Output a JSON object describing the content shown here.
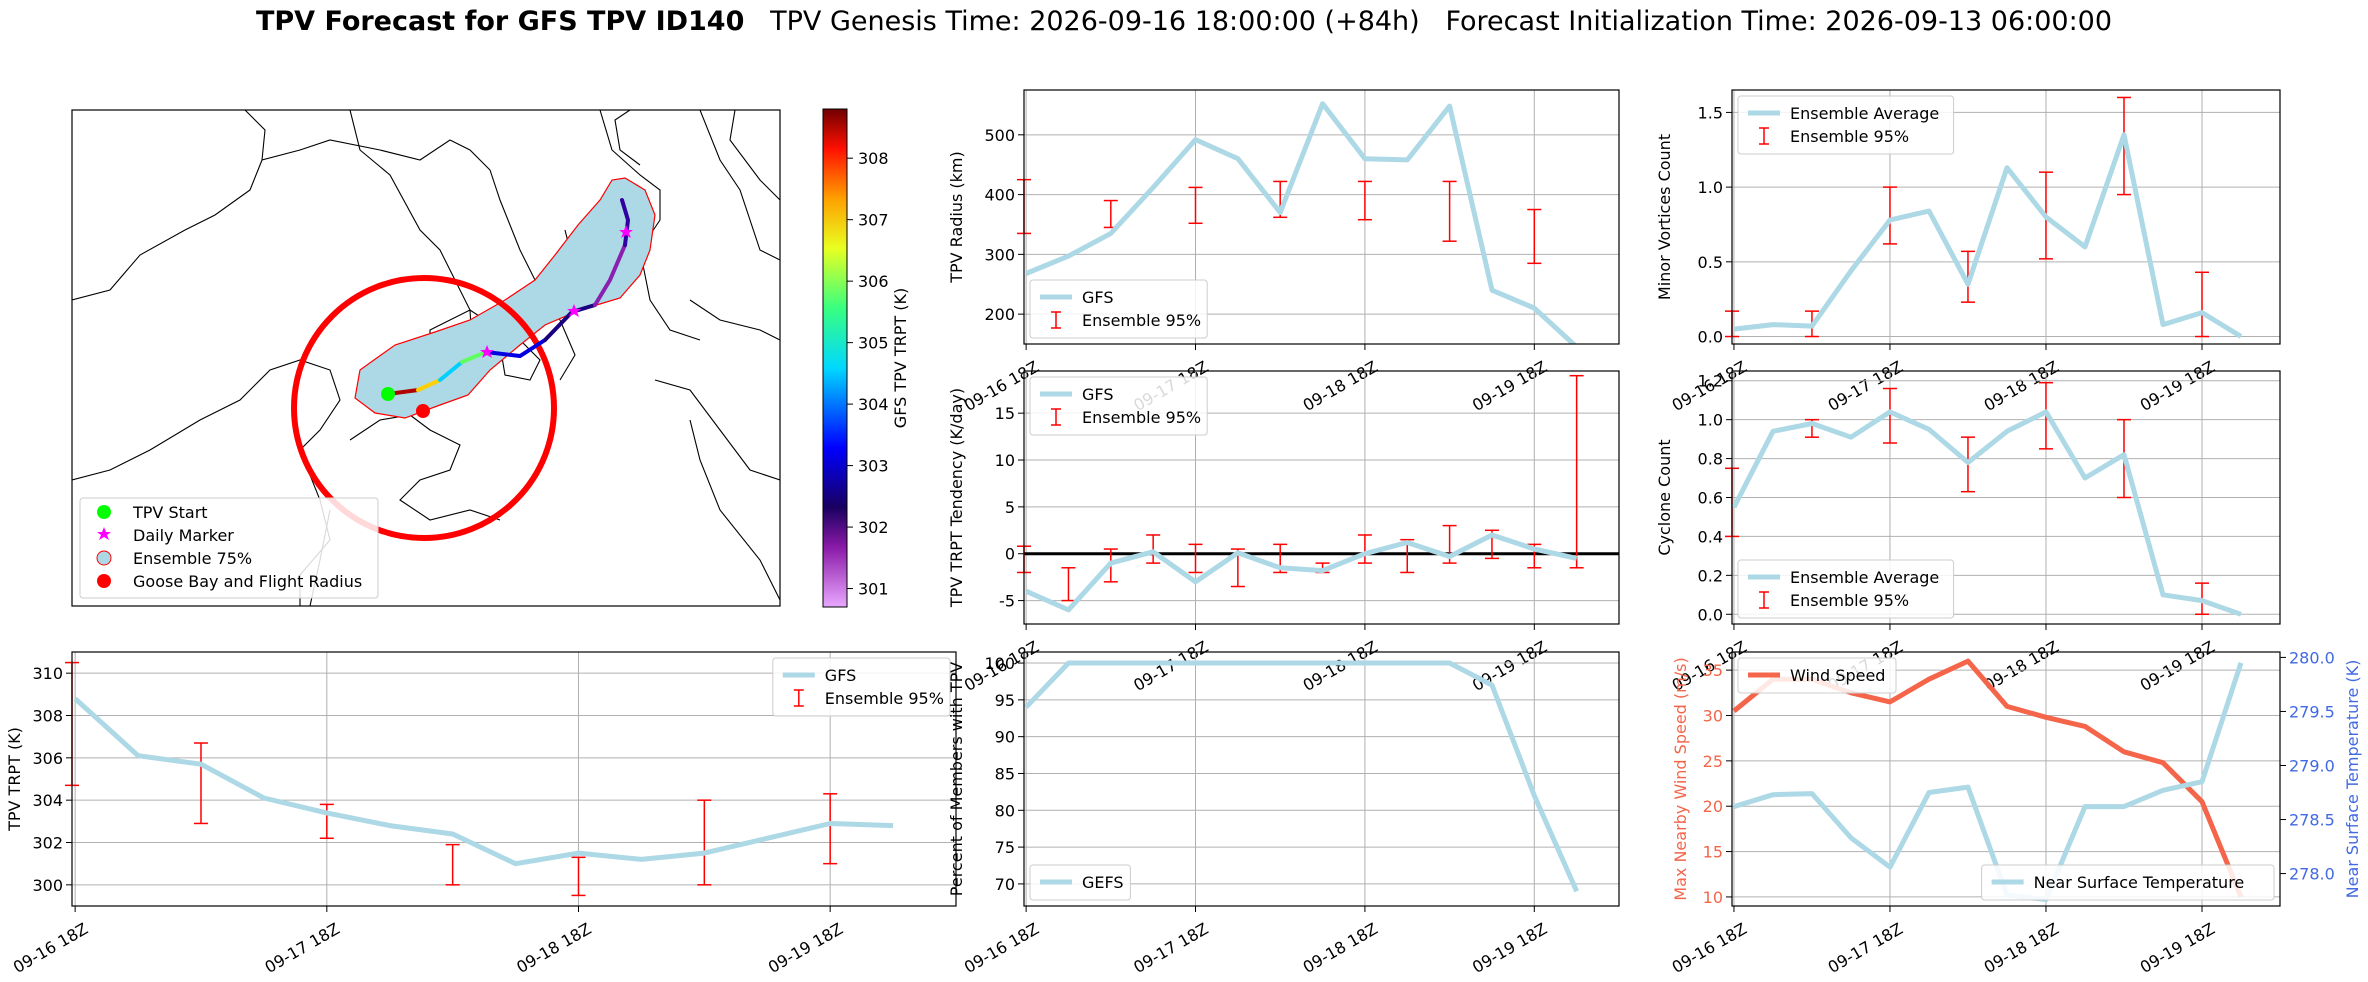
{
  "title": {
    "bold": "TPV Forecast for GFS TPV ID140",
    "genesis": "TPV Genesis Time: 2026-09-16 18:00:00 (+84h)",
    "init": "Forecast Initialization Time: 2026-09-13 06:00:00"
  },
  "colors": {
    "line": "#add8e6",
    "error": "#ff0000",
    "wind": "#f4654a",
    "temp_axis": "#4169e1",
    "grid": "#b0b0b0"
  },
  "map": {
    "colorbar_label": "GFS TPV TRPT (K)",
    "colorbar_ticks": [
      "301",
      "302",
      "303",
      "304",
      "305",
      "306",
      "307",
      "308"
    ],
    "legend": [
      {
        "label": "TPV Start",
        "symbol": "green-dot-icon"
      },
      {
        "label": "Daily Marker",
        "symbol": "magenta-star-icon"
      },
      {
        "label": "Ensemble 75%",
        "symbol": "lightblue-circle-icon"
      },
      {
        "label": "Goose Bay and Flight Radius",
        "symbol": "red-dot-icon"
      }
    ]
  },
  "time_ticks": [
    "09-16 18Z",
    "09-17 18Z",
    "09-18 18Z",
    "09-19 18Z"
  ],
  "chart_data": [
    {
      "id": "radius",
      "type": "line",
      "ylabel": "TPV Radius (km)",
      "ylim": [
        150,
        575
      ],
      "yticks": [
        200,
        300,
        400,
        500
      ],
      "legend": "bottom-left",
      "x_hours": [
        0,
        6,
        12,
        18,
        24,
        30,
        36,
        42,
        48,
        54,
        60,
        66,
        72,
        78,
        84
      ],
      "series": [
        {
          "name": "GFS",
          "values": [
            268,
            297,
            335,
            412,
            492,
            460,
            370,
            552,
            460,
            458,
            548,
            240,
            210,
            145,
            null
          ]
        }
      ],
      "errorbars": {
        "name": "Ensemble 95%",
        "x_hours": [
          -0.3,
          12,
          24,
          36,
          48,
          60,
          72
        ],
        "low": [
          335,
          345,
          352,
          362,
          358,
          322,
          285
        ],
        "high": [
          425,
          390,
          412,
          422,
          422,
          422,
          375
        ]
      }
    },
    {
      "id": "minor",
      "type": "line",
      "ylabel": "Minor Vortices Count",
      "ylim": [
        -0.05,
        1.65
      ],
      "yticks": [
        0.0,
        0.5,
        1.0,
        1.5
      ],
      "legend": "top-left",
      "x_hours": [
        0,
        6,
        12,
        18,
        24,
        30,
        36,
        42,
        48,
        54,
        60,
        66,
        72,
        78
      ],
      "series": [
        {
          "name": "Ensemble Average",
          "values": [
            0.05,
            0.08,
            0.07,
            0.44,
            0.78,
            0.84,
            0.35,
            1.13,
            0.8,
            0.6,
            1.35,
            0.08,
            0.16,
            0.0
          ]
        }
      ],
      "errorbars": {
        "name": "Ensemble 95%",
        "x_hours": [
          -0.3,
          12,
          24,
          36,
          48,
          60,
          72
        ],
        "low": [
          0.0,
          0.0,
          0.62,
          0.23,
          0.52,
          0.95,
          0.0
        ],
        "high": [
          0.17,
          0.17,
          1.0,
          0.57,
          1.1,
          1.6,
          0.43
        ]
      }
    },
    {
      "id": "tendency",
      "type": "line",
      "ylabel": "TPV TRPT Tendency (K/day)",
      "ylim": [
        -7.5,
        19.5
      ],
      "yticks": [
        -5,
        0,
        5,
        10,
        15
      ],
      "legend": "top-left",
      "x_hours": [
        0,
        6,
        12,
        18,
        24,
        30,
        36,
        42,
        48,
        54,
        60,
        66,
        72,
        78
      ],
      "series": [
        {
          "name": "GFS",
          "values": [
            -4.0,
            -6.0,
            -1.0,
            0.2,
            -3.0,
            0.1,
            -1.5,
            -1.8,
            0.0,
            1.2,
            -0.3,
            2.0,
            0.5,
            -0.5
          ]
        }
      ],
      "errorbars": {
        "name": "Ensemble 95%",
        "x_hours": [
          -0.3,
          6,
          12,
          18,
          24,
          30,
          36,
          42,
          48,
          54,
          60,
          66,
          72,
          78
        ],
        "low": [
          -2.0,
          -5.0,
          -3.0,
          -1.0,
          -2.0,
          -3.5,
          -2.0,
          -2.0,
          -1.0,
          -2.0,
          -1.0,
          -0.5,
          -1.5,
          -1.5
        ],
        "high": [
          0.8,
          -1.5,
          0.5,
          2.0,
          1.0,
          0.5,
          1.0,
          -1.0,
          2.0,
          1.5,
          3.0,
          2.5,
          1.0,
          19.0
        ]
      },
      "zero_line": true
    },
    {
      "id": "cyclone",
      "type": "line",
      "ylabel": "Cyclone Count",
      "ylim": [
        -0.05,
        1.25
      ],
      "yticks": [
        0.0,
        0.2,
        0.4,
        0.6,
        0.8,
        1.0,
        1.2
      ],
      "legend": "bottom-left",
      "x_hours": [
        0,
        6,
        12,
        18,
        24,
        30,
        36,
        42,
        48,
        54,
        60,
        66,
        72,
        78
      ],
      "series": [
        {
          "name": "Ensemble Average",
          "values": [
            0.55,
            0.94,
            0.98,
            0.91,
            1.04,
            0.95,
            0.78,
            0.94,
            1.04,
            0.7,
            0.82,
            0.1,
            0.07,
            0.0
          ]
        }
      ],
      "errorbars": {
        "name": "Ensemble 95%",
        "x_hours": [
          -0.3,
          12,
          24,
          36,
          48,
          60,
          72
        ],
        "low": [
          0.4,
          0.91,
          0.88,
          0.63,
          0.85,
          0.6,
          0.0
        ],
        "high": [
          0.75,
          1.0,
          1.16,
          0.91,
          1.19,
          1.0,
          0.16
        ]
      }
    },
    {
      "id": "trpt",
      "type": "line",
      "ylabel": "TPV TRPT (K)",
      "ylim": [
        299.0,
        311.0
      ],
      "yticks": [
        300,
        302,
        304,
        306,
        308,
        310
      ],
      "legend": "top-right",
      "x_hours": [
        0,
        6,
        12,
        18,
        24,
        30,
        36,
        42,
        48,
        54,
        60,
        66,
        72,
        78
      ],
      "series": [
        {
          "name": "GFS",
          "values": [
            308.8,
            306.1,
            305.7,
            304.1,
            303.4,
            302.8,
            302.4,
            301.0,
            301.5,
            301.2,
            301.5,
            302.2,
            302.9,
            302.8
          ]
        }
      ],
      "errorbars": {
        "name": "Ensemble 95%",
        "x_hours": [
          -0.3,
          12,
          24,
          36,
          48,
          60,
          72
        ],
        "low": [
          304.7,
          302.9,
          302.2,
          300.0,
          299.5,
          300.0,
          301.0
        ],
        "high": [
          310.5,
          306.7,
          303.8,
          301.9,
          301.3,
          304.0,
          304.3
        ]
      }
    },
    {
      "id": "percent",
      "type": "line",
      "ylabel": "Percent of Members with TPV",
      "ylim": [
        67,
        101.5
      ],
      "yticks": [
        70,
        75,
        80,
        85,
        90,
        95,
        100
      ],
      "legend": "bottom-left",
      "x_hours": [
        0,
        6,
        12,
        18,
        24,
        30,
        36,
        42,
        48,
        54,
        60,
        66,
        72,
        78
      ],
      "series": [
        {
          "name": "GEFS",
          "values": [
            94,
            100,
            100,
            100,
            100,
            100,
            100,
            100,
            100,
            100,
            100,
            97,
            82,
            69
          ]
        }
      ]
    },
    {
      "id": "wind",
      "type": "line",
      "ylabel": "Max Nearby Wind Speed (m/s)",
      "ylabel_right": "Near Surface Temperature (K)",
      "ylim": [
        9,
        37
      ],
      "yticks": [
        10,
        15,
        20,
        25,
        30,
        35
      ],
      "ylim_right": [
        277.7,
        280.05
      ],
      "yticks_right": [
        278.0,
        278.5,
        279.0,
        279.5,
        280.0
      ],
      "x_hours": [
        0,
        6,
        12,
        18,
        24,
        30,
        36,
        42,
        48,
        54,
        60,
        66,
        72,
        78
      ],
      "series": [
        {
          "name": "Wind Speed",
          "axis": "left",
          "values": [
            30.5,
            34.0,
            34.0,
            32.5,
            31.5,
            34.0,
            36.0,
            31.0,
            29.8,
            28.8,
            26.0,
            24.8,
            20.5,
            10.0
          ]
        },
        {
          "name": "Near Surface Temperature",
          "axis": "right",
          "values": [
            278.62,
            278.73,
            278.74,
            278.33,
            278.06,
            278.75,
            278.8,
            277.8,
            277.76,
            278.62,
            278.62,
            278.77,
            278.85,
            279.95
          ]
        }
      ]
    }
  ]
}
